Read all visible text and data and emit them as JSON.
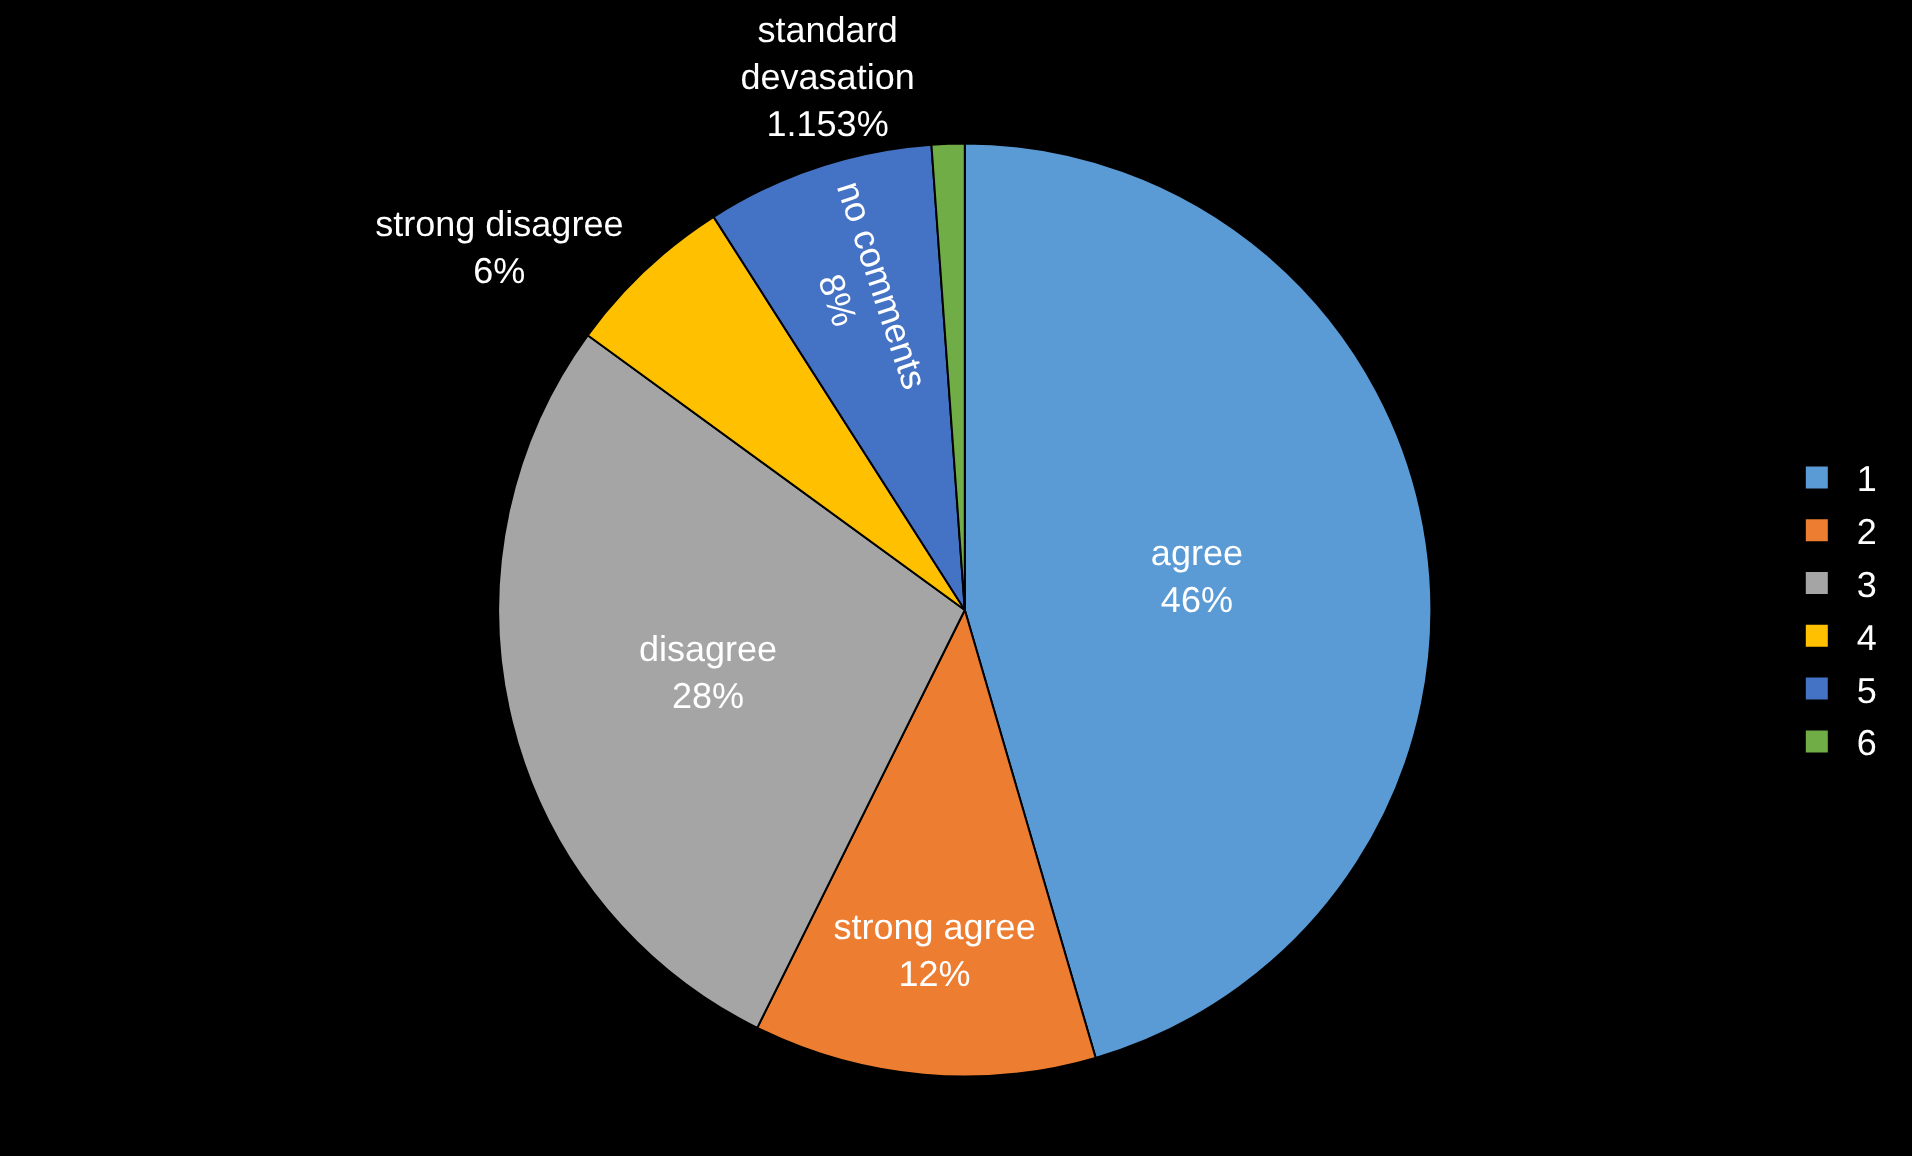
{
  "chart_data": {
    "type": "pie",
    "categories": [
      "1",
      "2",
      "3",
      "4",
      "5",
      "6"
    ],
    "values": [
      46,
      12,
      28,
      6,
      8,
      1.153
    ],
    "colors": [
      "#5b9bd5",
      "#ed7d31",
      "#a5a5a5",
      "#ffc000",
      "#4472c4",
      "#70ad47"
    ],
    "value_labels": [
      "agree\n46%",
      "strong agree\n12%",
      "disagree\n28%",
      "strong disagree\n6%",
      "no comments\n8%",
      "standard\ndevasation\n1.153%"
    ],
    "legend": "right"
  }
}
